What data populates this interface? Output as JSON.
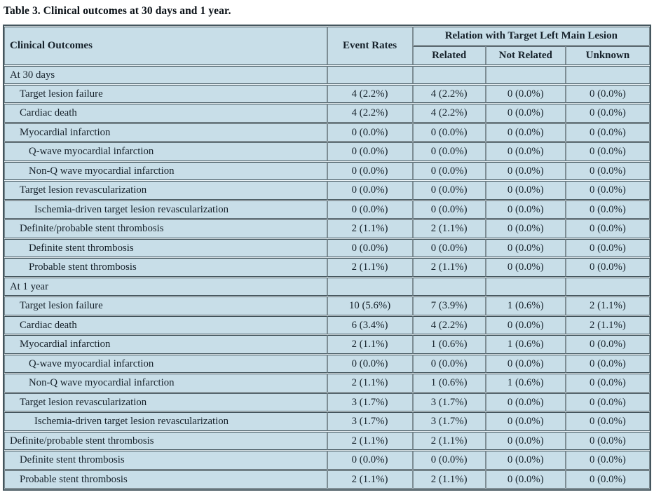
{
  "caption": "Table 3. Clinical outcomes at 30 days and 1 year.",
  "colors": {
    "cell-bg": "#c8dee8",
    "gap-bg": "#e7f0f4",
    "border-dark": "#3f5058",
    "border-mid": "#7d8d94",
    "outer-border": "#45565e",
    "text": "#16212a"
  },
  "table": {
    "header": {
      "clinical_outcomes": "Clinical Outcomes",
      "event_rates": "Event Rates",
      "relation_group": "Relation with Target Left Main Lesion",
      "subcols": [
        "Related",
        "Not Related",
        "Unknown"
      ]
    },
    "rows": [
      {
        "label": "At 30 days",
        "indent": 0,
        "section": true,
        "values": [
          "",
          "",
          "",
          ""
        ]
      },
      {
        "label": "Target lesion failure",
        "indent": 1,
        "values": [
          "4 (2.2%)",
          "4 (2.2%)",
          "0 (0.0%)",
          "0 (0.0%)"
        ]
      },
      {
        "label": "Cardiac death",
        "indent": 1,
        "values": [
          "4 (2.2%)",
          "4 (2.2%)",
          "0 (0.0%)",
          "0 (0.0%)"
        ]
      },
      {
        "label": "Myocardial infarction",
        "indent": 1,
        "values": [
          "0 (0.0%)",
          "0 (0.0%)",
          "0 (0.0%)",
          "0 (0.0%)"
        ]
      },
      {
        "label": "Q-wave myocardial infarction",
        "indent": 2,
        "values": [
          "0 (0.0%)",
          "0 (0.0%)",
          "0 (0.0%)",
          "0 (0.0%)"
        ]
      },
      {
        "label": "Non-Q wave myocardial infarction",
        "indent": 2,
        "values": [
          "0 (0.0%)",
          "0 (0.0%)",
          "0 (0.0%)",
          "0 (0.0%)"
        ]
      },
      {
        "label": "Target lesion revascularization",
        "indent": 1,
        "values": [
          "0 (0.0%)",
          "0 (0.0%)",
          "0 (0.0%)",
          "0 (0.0%)"
        ]
      },
      {
        "label": "Ischemia-driven target lesion revascularization",
        "indent": 3,
        "values": [
          "0 (0.0%)",
          "0 (0.0%)",
          "0 (0.0%)",
          "0 (0.0%)"
        ]
      },
      {
        "label": "Definite/probable stent thrombosis",
        "indent": 1,
        "values": [
          "2 (1.1%)",
          "2 (1.1%)",
          "0 (0.0%)",
          "0 (0.0%)"
        ]
      },
      {
        "label": "Definite stent thrombosis",
        "indent": 2,
        "values": [
          "0 (0.0%)",
          "0 (0.0%)",
          "0 (0.0%)",
          "0 (0.0%)"
        ]
      },
      {
        "label": "Probable stent thrombosis",
        "indent": 2,
        "values": [
          "2 (1.1%)",
          "2 (1.1%)",
          "0 (0.0%)",
          "0 (0.0%)"
        ]
      },
      {
        "label": "At 1 year",
        "indent": 0,
        "section": true,
        "values": [
          "",
          "",
          "",
          ""
        ]
      },
      {
        "label": "Target lesion failure",
        "indent": 1,
        "values": [
          "10 (5.6%)",
          "7 (3.9%)",
          "1 (0.6%)",
          "2 (1.1%)"
        ]
      },
      {
        "label": "Cardiac death",
        "indent": 1,
        "values": [
          "6 (3.4%)",
          "4 (2.2%)",
          "0 (0.0%)",
          "2 (1.1%)"
        ]
      },
      {
        "label": "Myocardial infarction",
        "indent": 1,
        "values": [
          "2 (1.1%)",
          "1 (0.6%)",
          "1 (0.6%)",
          "0 (0.0%)"
        ]
      },
      {
        "label": "Q-wave myocardial infarction",
        "indent": 2,
        "values": [
          "0 (0.0%)",
          "0 (0.0%)",
          "0 (0.0%)",
          "0 (0.0%)"
        ]
      },
      {
        "label": "Non-Q wave myocardial infarction",
        "indent": 2,
        "values": [
          "2 (1.1%)",
          "1 (0.6%)",
          "1 (0.6%)",
          "0 (0.0%)"
        ]
      },
      {
        "label": "Target lesion revascularization",
        "indent": 1,
        "values": [
          "3 (1.7%)",
          "3 (1.7%)",
          "0 (0.0%)",
          "0 (0.0%)"
        ]
      },
      {
        "label": "Ischemia-driven target lesion revascularization",
        "indent": 3,
        "values": [
          "3 (1.7%)",
          "3 (1.7%)",
          "0 (0.0%)",
          "0 (0.0%)"
        ]
      },
      {
        "label": "Definite/probable stent thrombosis",
        "indent": 0,
        "values": [
          "2 (1.1%)",
          "2 (1.1%)",
          "0 (0.0%)",
          "0 (0.0%)"
        ]
      },
      {
        "label": "Definite stent thrombosis",
        "indent": 1,
        "values": [
          "0 (0.0%)",
          "0 (0.0%)",
          "0 (0.0%)",
          "0 (0.0%)"
        ]
      },
      {
        "label": "Probable stent thrombosis",
        "indent": 1,
        "values": [
          "2 (1.1%)",
          "2 (1.1%)",
          "0 (0.0%)",
          "0 (0.0%)"
        ]
      }
    ]
  }
}
